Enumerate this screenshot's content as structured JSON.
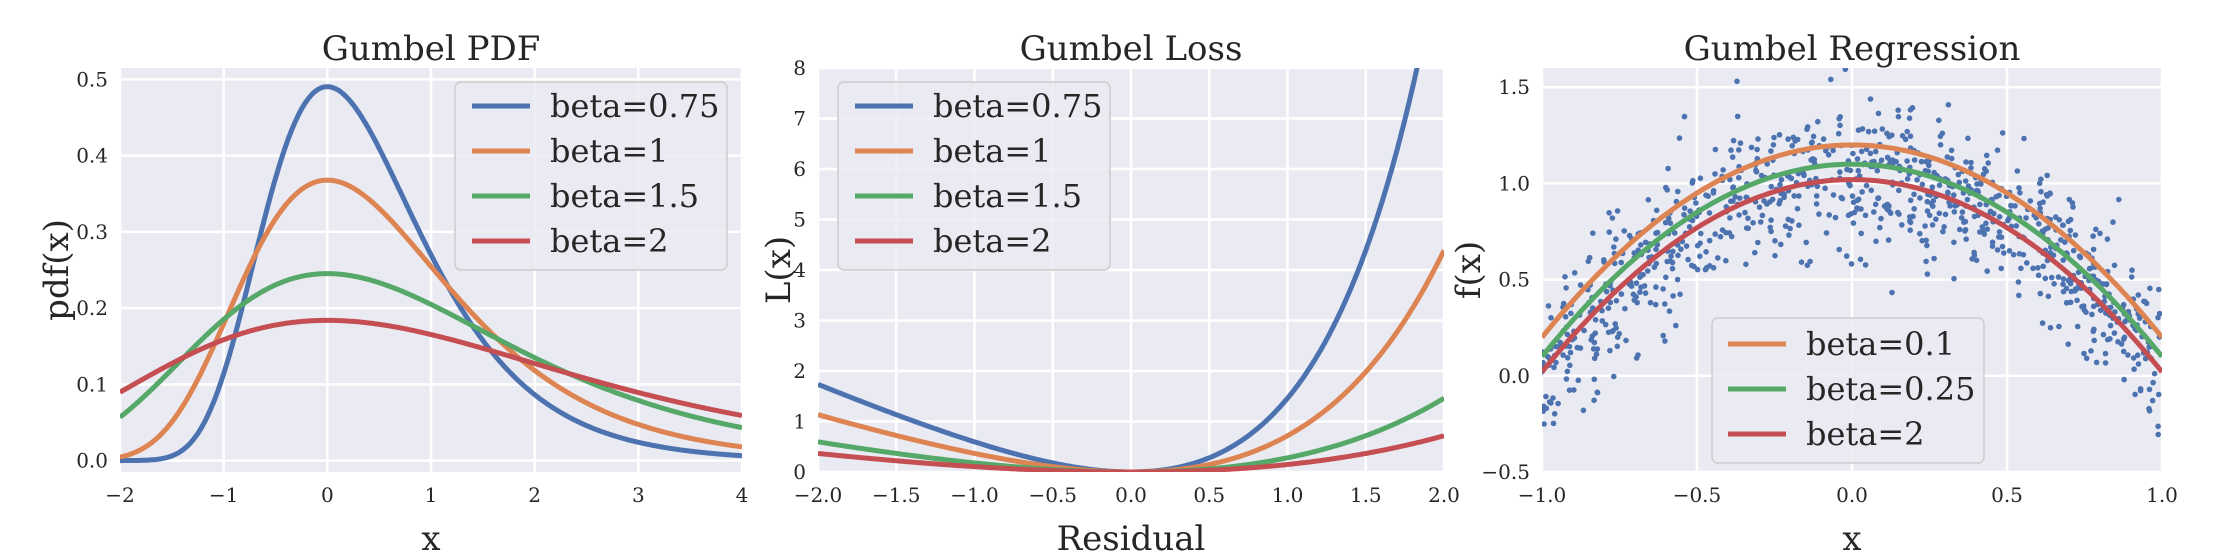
{
  "colors": {
    "panel_bg": "#EAEAF2",
    "grid": "#FFFFFF",
    "blue": "#4C72B0",
    "orange": "#DD8452",
    "green": "#55A868",
    "red": "#C44E52",
    "scatter": "#4C72B0"
  },
  "chart_data": [
    {
      "type": "line",
      "title": "Gumbel PDF",
      "xlabel": "x",
      "ylabel": "pdf(x)",
      "xlim": [
        -2,
        4
      ],
      "ylim": [
        -0.015,
        0.515
      ],
      "xticks": [
        -2,
        -1,
        0,
        1,
        2,
        3,
        4
      ],
      "xtick_labels": [
        "−2",
        "−1",
        "0",
        "1",
        "2",
        "3",
        "4"
      ],
      "yticks": [
        0.0,
        0.1,
        0.2,
        0.3,
        0.4,
        0.5
      ],
      "ytick_labels": [
        "0.0",
        "0.1",
        "0.2",
        "0.3",
        "0.4",
        "0.5"
      ],
      "legend_position": "top-right",
      "function": "gumbel_pdf",
      "series": [
        {
          "name": "beta=0.75",
          "beta": 0.75,
          "color": "blue"
        },
        {
          "name": "beta=1",
          "beta": 1,
          "color": "orange"
        },
        {
          "name": "beta=1.5",
          "beta": 1.5,
          "color": "green"
        },
        {
          "name": "beta=2",
          "beta": 2,
          "color": "red"
        }
      ]
    },
    {
      "type": "line",
      "title": "Gumbel Loss",
      "xlabel": "Residual",
      "ylabel": "L(x)",
      "xlim": [
        -2,
        2
      ],
      "ylim": [
        0,
        8
      ],
      "xticks": [
        -2.0,
        -1.5,
        -1.0,
        -0.5,
        0.0,
        0.5,
        1.0,
        1.5,
        2.0
      ],
      "xtick_labels": [
        "−2.0",
        "−1.5",
        "−1.0",
        "−0.5",
        "0.0",
        "0.5",
        "1.0",
        "1.5",
        "2.0"
      ],
      "yticks": [
        0,
        1,
        2,
        3,
        4,
        5,
        6,
        7,
        8
      ],
      "ytick_labels": [
        "0",
        "1",
        "2",
        "3",
        "4",
        "5",
        "6",
        "7",
        "8"
      ],
      "legend_position": "top-left",
      "function": "gumbel_loss",
      "series": [
        {
          "name": "beta=0.75",
          "beta": 0.75,
          "color": "blue"
        },
        {
          "name": "beta=1",
          "beta": 1,
          "color": "orange"
        },
        {
          "name": "beta=1.5",
          "beta": 1.5,
          "color": "green"
        },
        {
          "name": "beta=2",
          "beta": 2,
          "color": "red"
        }
      ]
    },
    {
      "type": "scatter",
      "title": "Gumbel Regression",
      "xlabel": "x",
      "ylabel": "f(x)",
      "xlim": [
        -1,
        1
      ],
      "ylim": [
        -0.5,
        1.6
      ],
      "xticks": [
        -1.0,
        -0.5,
        0.0,
        0.5,
        1.0
      ],
      "xtick_labels": [
        "−1.0",
        "−0.5",
        "0.0",
        "0.5",
        "1.0"
      ],
      "yticks": [
        -0.5,
        0.0,
        0.5,
        1.0,
        1.5
      ],
      "ytick_labels": [
        "−0.5",
        "0.0",
        "0.5",
        "1.0",
        "1.5"
      ],
      "legend_position": "lower-center",
      "scatter": {
        "n": 900,
        "curve": "1 - x^2",
        "noise": "gaussian, sd approx 0.2",
        "seed": 7
      },
      "series": [
        {
          "name": "beta=0.1",
          "peak": 1.2,
          "color": "orange"
        },
        {
          "name": "beta=0.25",
          "peak": 1.1,
          "color": "green"
        },
        {
          "name": "beta=2",
          "peak": 1.02,
          "color": "red"
        }
      ]
    }
  ]
}
